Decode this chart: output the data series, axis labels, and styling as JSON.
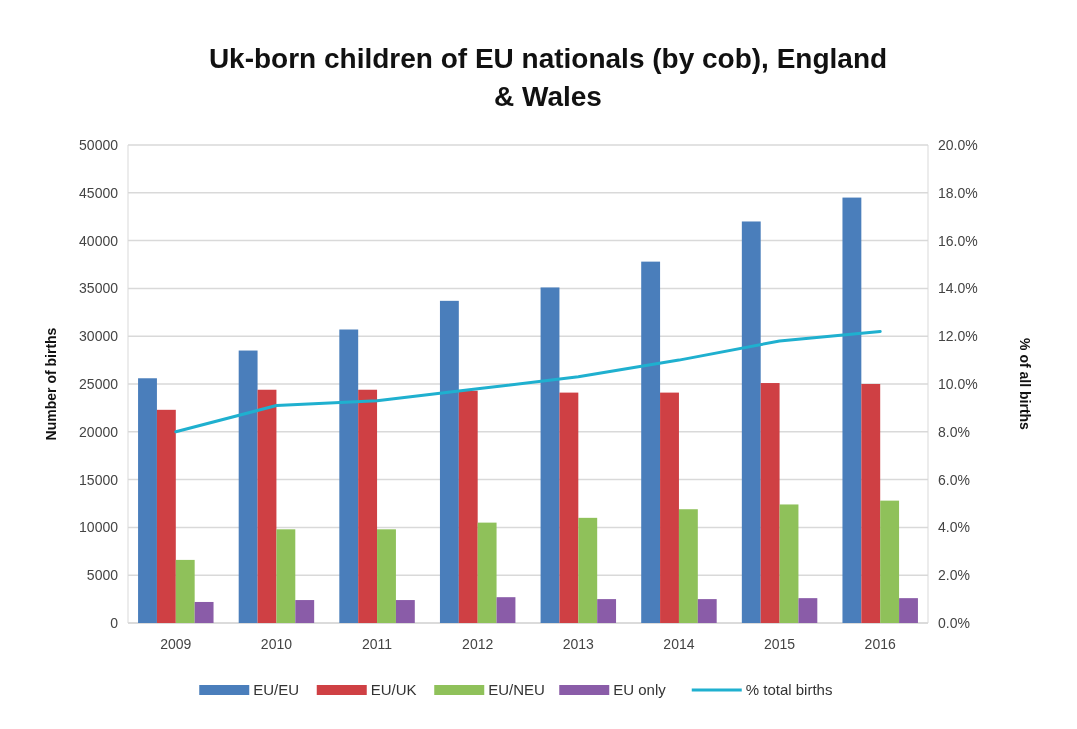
{
  "chart_data": {
    "type": "bar",
    "title": "Uk-born children of EU nationals (by cob), England & Wales",
    "categories": [
      "2009",
      "2010",
      "2011",
      "2012",
      "2013",
      "2014",
      "2015",
      "2016"
    ],
    "series": [
      {
        "name": "EU/EU",
        "color": "#4a7ebb",
        "values": [
          25600,
          28500,
          30700,
          33700,
          35100,
          37800,
          42000,
          44500
        ]
      },
      {
        "name": "EU/UK",
        "color": "#cf4044",
        "values": [
          22300,
          24400,
          24400,
          24300,
          24100,
          24100,
          25100,
          25000
        ]
      },
      {
        "name": "EU/NEU",
        "color": "#8fc15a",
        "values": [
          6600,
          9800,
          9800,
          10500,
          11000,
          11900,
          12400,
          12800
        ]
      },
      {
        "name": "EU only",
        "color": "#8a5ca8",
        "values": [
          2200,
          2400,
          2400,
          2700,
          2500,
          2500,
          2600,
          2600
        ]
      },
      {
        "name": "% total births",
        "type": "line",
        "axis": "y2",
        "color": "#1fb0cf",
        "values": [
          8.0,
          9.1,
          9.3,
          9.8,
          10.3,
          11.0,
          11.8,
          12.2
        ]
      }
    ],
    "ylabel": "Number of births",
    "y2label": "% of all births",
    "ylim": [
      0,
      50000
    ],
    "yticks": [
      0,
      5000,
      10000,
      15000,
      20000,
      25000,
      30000,
      35000,
      40000,
      45000,
      50000
    ],
    "y2lim": [
      0,
      20
    ],
    "y2ticks": [
      {
        "value": 0,
        "label": "0.0%"
      },
      {
        "value": 2,
        "label": "2.0%"
      },
      {
        "value": 4,
        "label": "4.0%"
      },
      {
        "value": 6,
        "label": "6.0%"
      },
      {
        "value": 8,
        "label": "8.0%"
      },
      {
        "value": 10,
        "label": "10.0%"
      },
      {
        "value": 12,
        "label": "12.0%"
      },
      {
        "value": 14,
        "label": "14.0%"
      },
      {
        "value": 16,
        "label": "16.0%"
      },
      {
        "value": 18,
        "label": "18.0%"
      },
      {
        "value": 20,
        "label": "20.0%"
      }
    ],
    "grid": "y",
    "legend": "bottom",
    "marker": "none"
  }
}
